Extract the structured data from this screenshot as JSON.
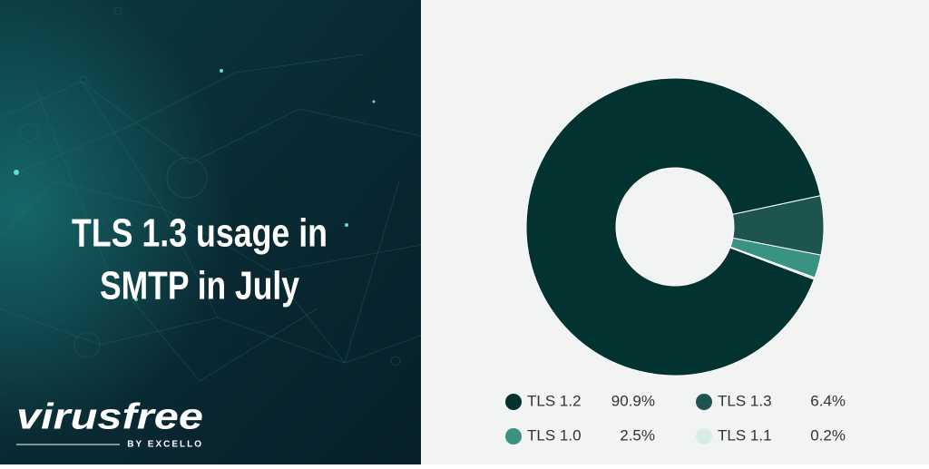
{
  "brand": {
    "name": "virusfree",
    "tagline": "BY EXCELLO"
  },
  "chart_data": {
    "type": "donut",
    "title": [
      "TLS 1.3 usage in",
      "SMTP in July"
    ],
    "categories": [
      "TLS 1.2",
      "TLS 1.3",
      "TLS 1.0",
      "TLS 1.1"
    ],
    "values": [
      90.9,
      6.4,
      2.5,
      0.2
    ],
    "value_labels": [
      "90.9%",
      "6.4%",
      "2.5%",
      "0.2%"
    ],
    "colors": [
      "#033331",
      "#1e5450",
      "#3a9283",
      "#d9ece6"
    ]
  }
}
